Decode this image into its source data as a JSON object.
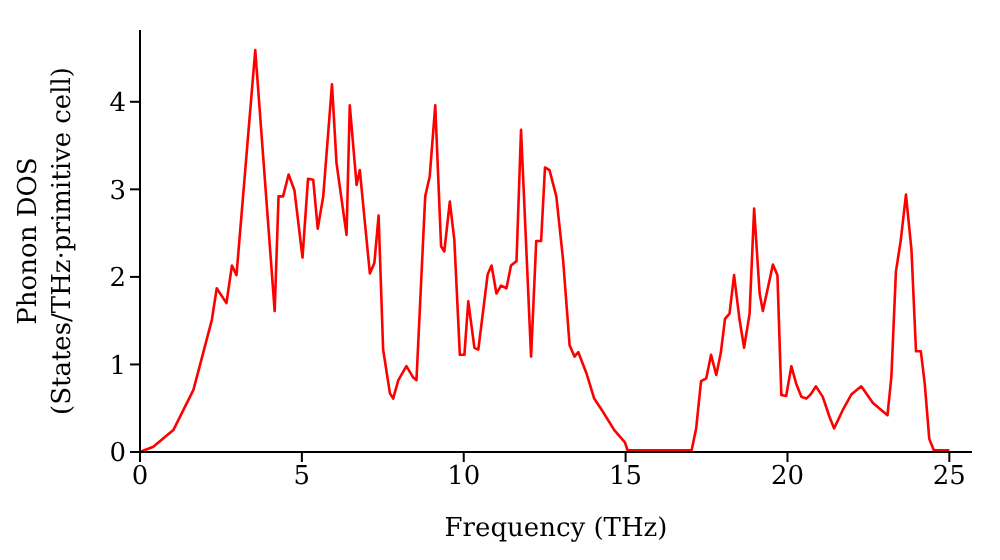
{
  "chart_data": {
    "type": "line",
    "xlabel": "Frequency (THz)",
    "ylabel": "Phonon DOS\n(States/THz·primitive cell)",
    "xlim": [
      0,
      25.7
    ],
    "ylim": [
      0,
      4.82
    ],
    "xticks": [
      0,
      5,
      10,
      15,
      20,
      25
    ],
    "yticks": [
      0,
      1,
      2,
      3,
      4
    ],
    "grid": false,
    "legend": false,
    "marker": "none",
    "line_style": "solid",
    "series": [
      {
        "color": "#ff0000",
        "x": [
          0,
          0.41,
          1.03,
          1.65,
          1.95,
          2.22,
          2.37,
          2.67,
          2.84,
          2.98,
          3.56,
          4.16,
          4.28,
          4.42,
          4.59,
          4.77,
          5.02,
          5.19,
          5.35,
          5.49,
          5.66,
          5.93,
          6.07,
          6.38,
          6.48,
          6.69,
          6.79,
          7.1,
          7.24,
          7.37,
          7.51,
          7.72,
          7.82,
          7.98,
          8.23,
          8.44,
          8.54,
          8.81,
          8.95,
          9.12,
          9.3,
          9.4,
          9.57,
          9.71,
          9.88,
          10.02,
          10.14,
          10.33,
          10.45,
          10.74,
          10.86,
          11.01,
          11.15,
          11.32,
          11.46,
          11.63,
          11.77,
          12.08,
          12.24,
          12.39,
          12.51,
          12.65,
          12.86,
          13.07,
          13.27,
          13.42,
          13.54,
          13.79,
          14.03,
          14.3,
          14.65,
          14.98,
          15.06,
          17.04,
          17.18,
          17.33,
          17.49,
          17.64,
          17.8,
          17.94,
          18.07,
          18.21,
          18.35,
          18.52,
          18.66,
          18.83,
          18.97,
          19.14,
          19.24,
          19.55,
          19.69,
          19.81,
          19.96,
          20.12,
          20.27,
          20.43,
          20.58,
          20.72,
          20.88,
          21.09,
          21.3,
          21.44,
          21.71,
          21.98,
          22.28,
          22.64,
          23.09,
          23.21,
          23.35,
          23.5,
          23.66,
          23.83,
          23.97,
          24.12,
          24.24,
          24.38,
          24.52,
          25
        ],
        "values": [
          0,
          0.06,
          0.25,
          0.71,
          1.13,
          1.51,
          1.87,
          1.7,
          2.13,
          2.02,
          4.59,
          1.61,
          2.92,
          2.92,
          3.17,
          2.99,
          2.22,
          3.12,
          3.11,
          2.55,
          2.92,
          4.2,
          3.3,
          2.48,
          3.96,
          3.05,
          3.22,
          2.04,
          2.16,
          2.7,
          1.17,
          0.67,
          0.61,
          0.82,
          0.98,
          0.85,
          0.82,
          2.92,
          3.15,
          3.96,
          2.35,
          2.29,
          2.86,
          2.42,
          1.11,
          1.11,
          1.72,
          1.19,
          1.17,
          2.03,
          2.13,
          1.81,
          1.9,
          1.87,
          2.13,
          2.18,
          3.68,
          1.09,
          2.41,
          2.41,
          3.25,
          3.22,
          2.92,
          2.19,
          1.22,
          1.09,
          1.14,
          0.9,
          0.61,
          0.46,
          0.25,
          0.11,
          0.02,
          0.02,
          0.27,
          0.81,
          0.84,
          1.11,
          0.88,
          1.13,
          1.52,
          1.58,
          2.02,
          1.51,
          1.19,
          1.58,
          2.78,
          1.81,
          1.61,
          2.14,
          2.02,
          0.65,
          0.64,
          0.98,
          0.78,
          0.63,
          0.61,
          0.66,
          0.75,
          0.63,
          0.4,
          0.27,
          0.48,
          0.66,
          0.75,
          0.56,
          0.42,
          0.86,
          2.06,
          2.42,
          2.94,
          2.31,
          1.15,
          1.15,
          0.78,
          0.15,
          0.02,
          0.02
        ]
      }
    ]
  }
}
